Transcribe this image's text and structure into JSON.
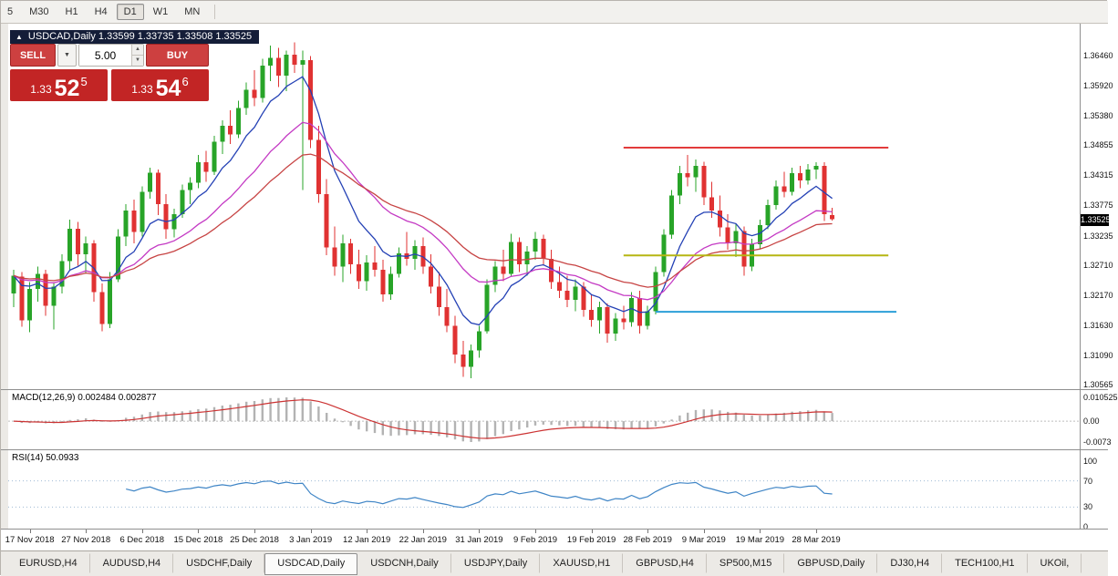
{
  "toolbar": {
    "timeframes": [
      "5",
      "M30",
      "H1",
      "H4",
      "D1",
      "W1",
      "MN"
    ],
    "active": "D1"
  },
  "chart": {
    "title_readout": "USDCAD,Daily 1.33599 1.33735 1.33508 1.33525"
  },
  "trade_panel": {
    "sell_label": "SELL",
    "buy_label": "BUY",
    "volume": "5.00",
    "sell_price": {
      "prefix": "1.33",
      "pips": "52",
      "pip_fraction": "5"
    },
    "buy_price": {
      "prefix": "1.33",
      "pips": "54",
      "pip_fraction": "6"
    }
  },
  "macd_panel": {
    "label": "MACD(12,26,9) 0.002484 0.002877"
  },
  "rsi_panel": {
    "label": "RSI(14) 50.0933"
  },
  "tabs": {
    "items": [
      "EURUSD,H4",
      "AUDUSD,H4",
      "USDCHF,Daily",
      "USDCAD,Daily",
      "USDCNH,Daily",
      "USDJPY,Daily",
      "XAUUSD,H1",
      "GBPUSD,H4",
      "SP500,M15",
      "GBPUSD,Daily",
      "DJ30,H4",
      "TECH100,H1",
      "UKOil,"
    ],
    "active_index": 3
  },
  "chart_data": {
    "type": "candlestick",
    "title": "USDCAD,Daily",
    "last_price_tag": "1.33525",
    "y_axis_labels": [
      "1.36460",
      "1.35920",
      "1.35380",
      "1.34855",
      "1.34315",
      "1.33775",
      "1.33235",
      "1.32710",
      "1.32170",
      "1.31630",
      "1.31090",
      "1.30565"
    ],
    "y_view_range": [
      1.305,
      1.3698
    ],
    "x_labels": [
      "17 Nov 2018",
      "27 Nov 2018",
      "6 Dec 2018",
      "15 Dec 2018",
      "25 Dec 2018",
      "3 Jan 2019",
      "12 Jan 2019",
      "22 Jan 2019",
      "31 Jan 2019",
      "9 Feb 2019",
      "19 Feb 2019",
      "28 Feb 2019",
      "9 Mar 2019",
      "19 Mar 2019",
      "28 Mar 2019"
    ],
    "x_label_indices": [
      2,
      9,
      16,
      23,
      30,
      37,
      44,
      51,
      58,
      65,
      72,
      79,
      86,
      93,
      100
    ],
    "colors": {
      "up": "#28a428",
      "down": "#e03232"
    },
    "candles": [
      [
        1.322,
        1.3262,
        1.3195,
        1.3252
      ],
      [
        1.325,
        1.3258,
        1.316,
        1.3172
      ],
      [
        1.3172,
        1.324,
        1.315,
        1.3228
      ],
      [
        1.3228,
        1.3268,
        1.3205,
        1.3255
      ],
      [
        1.3255,
        1.3262,
        1.318,
        1.3198
      ],
      [
        1.3198,
        1.324,
        1.3155,
        1.3232
      ],
      [
        1.3232,
        1.329,
        1.322,
        1.3278
      ],
      [
        1.3278,
        1.3352,
        1.3262,
        1.3336
      ],
      [
        1.3336,
        1.3348,
        1.327,
        1.329
      ],
      [
        1.329,
        1.3322,
        1.3255,
        1.331
      ],
      [
        1.331,
        1.3315,
        1.3205,
        1.3222
      ],
      [
        1.3222,
        1.3238,
        1.3152,
        1.3165
      ],
      [
        1.3165,
        1.3258,
        1.3158,
        1.3245
      ],
      [
        1.3245,
        1.3335,
        1.324,
        1.3322
      ],
      [
        1.3322,
        1.338,
        1.3305,
        1.3368
      ],
      [
        1.3368,
        1.3388,
        1.331,
        1.333
      ],
      [
        1.333,
        1.3412,
        1.3322,
        1.3402
      ],
      [
        1.3402,
        1.3445,
        1.339,
        1.3436
      ],
      [
        1.3436,
        1.3442,
        1.336,
        1.338
      ],
      [
        1.338,
        1.3398,
        1.3318,
        1.3335
      ],
      [
        1.3335,
        1.3372,
        1.332,
        1.3362
      ],
      [
        1.3362,
        1.3415,
        1.3355,
        1.3405
      ],
      [
        1.3405,
        1.3428,
        1.338,
        1.3418
      ],
      [
        1.3418,
        1.3468,
        1.3408,
        1.3455
      ],
      [
        1.3455,
        1.3475,
        1.342,
        1.3438
      ],
      [
        1.3438,
        1.3502,
        1.3432,
        1.3492
      ],
      [
        1.3492,
        1.353,
        1.347,
        1.352
      ],
      [
        1.352,
        1.3548,
        1.3488,
        1.3505
      ],
      [
        1.3505,
        1.3565,
        1.3498,
        1.3552
      ],
      [
        1.3552,
        1.3598,
        1.354,
        1.3585
      ],
      [
        1.3585,
        1.362,
        1.3555,
        1.357
      ],
      [
        1.357,
        1.364,
        1.3562,
        1.3628
      ],
      [
        1.3628,
        1.3664,
        1.36,
        1.3642
      ],
      [
        1.3642,
        1.366,
        1.359,
        1.361
      ],
      [
        1.361,
        1.3655,
        1.3582,
        1.3648
      ],
      [
        1.3648,
        1.367,
        1.3615,
        1.363
      ],
      [
        1.363,
        1.3655,
        1.3405,
        1.3638
      ],
      [
        1.3638,
        1.3645,
        1.348,
        1.3495
      ],
      [
        1.3495,
        1.352,
        1.3382,
        1.3398
      ],
      [
        1.3398,
        1.3425,
        1.3288,
        1.3302
      ],
      [
        1.3302,
        1.334,
        1.3252,
        1.3268
      ],
      [
        1.3268,
        1.3325,
        1.324,
        1.331
      ],
      [
        1.331,
        1.3318,
        1.3255,
        1.3272
      ],
      [
        1.3272,
        1.3298,
        1.3228,
        1.3242
      ],
      [
        1.3242,
        1.3288,
        1.3225,
        1.3275
      ],
      [
        1.3275,
        1.3305,
        1.325,
        1.3262
      ],
      [
        1.3262,
        1.328,
        1.3205,
        1.3218
      ],
      [
        1.3218,
        1.3268,
        1.3208,
        1.3255
      ],
      [
        1.3255,
        1.3302,
        1.3248,
        1.3292
      ],
      [
        1.3292,
        1.333,
        1.327,
        1.3282
      ],
      [
        1.3282,
        1.3315,
        1.3262,
        1.3305
      ],
      [
        1.3305,
        1.332,
        1.3255,
        1.3268
      ],
      [
        1.3268,
        1.329,
        1.322,
        1.3232
      ],
      [
        1.3232,
        1.3258,
        1.318,
        1.3195
      ],
      [
        1.3195,
        1.3228,
        1.315,
        1.3162
      ],
      [
        1.3162,
        1.318,
        1.3095,
        1.311
      ],
      [
        1.311,
        1.3135,
        1.307,
        1.3088
      ],
      [
        1.3088,
        1.3128,
        1.3068,
        1.3118
      ],
      [
        1.3118,
        1.3162,
        1.3105,
        1.3152
      ],
      [
        1.3152,
        1.3245,
        1.3148,
        1.3235
      ],
      [
        1.3235,
        1.3278,
        1.3222,
        1.3268
      ],
      [
        1.3268,
        1.3298,
        1.3242,
        1.3255
      ],
      [
        1.3255,
        1.3327,
        1.325,
        1.3312
      ],
      [
        1.3312,
        1.332,
        1.3258,
        1.3272
      ],
      [
        1.3272,
        1.3305,
        1.3252,
        1.3295
      ],
      [
        1.3295,
        1.333,
        1.328,
        1.3318
      ],
      [
        1.3318,
        1.3325,
        1.327,
        1.3282
      ],
      [
        1.3282,
        1.3298,
        1.3228,
        1.324
      ],
      [
        1.324,
        1.3268,
        1.3212,
        1.3225
      ],
      [
        1.3225,
        1.3252,
        1.3195,
        1.3208
      ],
      [
        1.3208,
        1.3245,
        1.3188,
        1.3232
      ],
      [
        1.3232,
        1.324,
        1.3178,
        1.319
      ],
      [
        1.319,
        1.3218,
        1.316,
        1.3172
      ],
      [
        1.3172,
        1.3205,
        1.3148,
        1.3195
      ],
      [
        1.3195,
        1.3202,
        1.3132,
        1.3148
      ],
      [
        1.3148,
        1.3185,
        1.3135,
        1.3175
      ],
      [
        1.3175,
        1.3198,
        1.3155,
        1.3168
      ],
      [
        1.3168,
        1.3222,
        1.316,
        1.3212
      ],
      [
        1.3212,
        1.3225,
        1.3148,
        1.3162
      ],
      [
        1.3162,
        1.3198,
        1.3155,
        1.3188
      ],
      [
        1.3188,
        1.3268,
        1.3182,
        1.3258
      ],
      [
        1.3258,
        1.3335,
        1.325,
        1.3325
      ],
      [
        1.3325,
        1.3405,
        1.3318,
        1.3395
      ],
      [
        1.3395,
        1.3448,
        1.338,
        1.3435
      ],
      [
        1.3435,
        1.3468,
        1.3412,
        1.3428
      ],
      [
        1.3428,
        1.346,
        1.3402,
        1.3448
      ],
      [
        1.3448,
        1.3456,
        1.3378,
        1.3392
      ],
      [
        1.3392,
        1.342,
        1.3355,
        1.3368
      ],
      [
        1.3368,
        1.3395,
        1.3322,
        1.3338
      ],
      [
        1.3338,
        1.3362,
        1.3298,
        1.331
      ],
      [
        1.331,
        1.3345,
        1.3285,
        1.3332
      ],
      [
        1.3332,
        1.334,
        1.3252,
        1.3268
      ],
      [
        1.3268,
        1.3318,
        1.326,
        1.3308
      ],
      [
        1.3308,
        1.3352,
        1.33,
        1.3342
      ],
      [
        1.3342,
        1.3388,
        1.3335,
        1.3378
      ],
      [
        1.3378,
        1.3422,
        1.337,
        1.3412
      ],
      [
        1.3412,
        1.3438,
        1.3392,
        1.3402
      ],
      [
        1.3402,
        1.3445,
        1.3395,
        1.3435
      ],
      [
        1.3435,
        1.3448,
        1.3408,
        1.3422
      ],
      [
        1.3422,
        1.3452,
        1.3415,
        1.3442
      ],
      [
        1.3442,
        1.3455,
        1.3425,
        1.3448
      ],
      [
        1.3448,
        1.3455,
        1.335,
        1.3362
      ],
      [
        1.33599,
        1.33735,
        1.33508,
        1.33525
      ]
    ],
    "moving_averages": [
      {
        "type": "ema",
        "period": 8,
        "color": "#2441b5"
      },
      {
        "type": "ema",
        "period": 20,
        "color": "#c43ac4"
      },
      {
        "type": "ema",
        "period": 32,
        "color": "#c74444"
      }
    ],
    "horizontal_lines": [
      {
        "price": 1.3481,
        "color": "#e23b3b",
        "from_index": 76,
        "to_index": 109
      },
      {
        "price": 1.3288,
        "color": "#b6b613",
        "from_index": 76,
        "to_index": 109
      },
      {
        "price": 1.3187,
        "color": "#2b9fd8",
        "from_index": 80,
        "to_index": 110
      }
    ],
    "macd": {
      "fast": 12,
      "slow": 26,
      "signal": 9,
      "last_value": "0.002484",
      "last_signal": "0.002877",
      "axis_labels": [
        "0.010525",
        "0.00",
        "-0.0073"
      ],
      "histogram_color": "#b3b3b3",
      "signal_color": "#cc3333"
    },
    "rsi": {
      "period": 14,
      "last_value": "50.0933",
      "axis_labels": [
        "100",
        "70",
        "30",
        "0"
      ],
      "levels": [
        70,
        30
      ],
      "color": "#3f85c6"
    }
  }
}
